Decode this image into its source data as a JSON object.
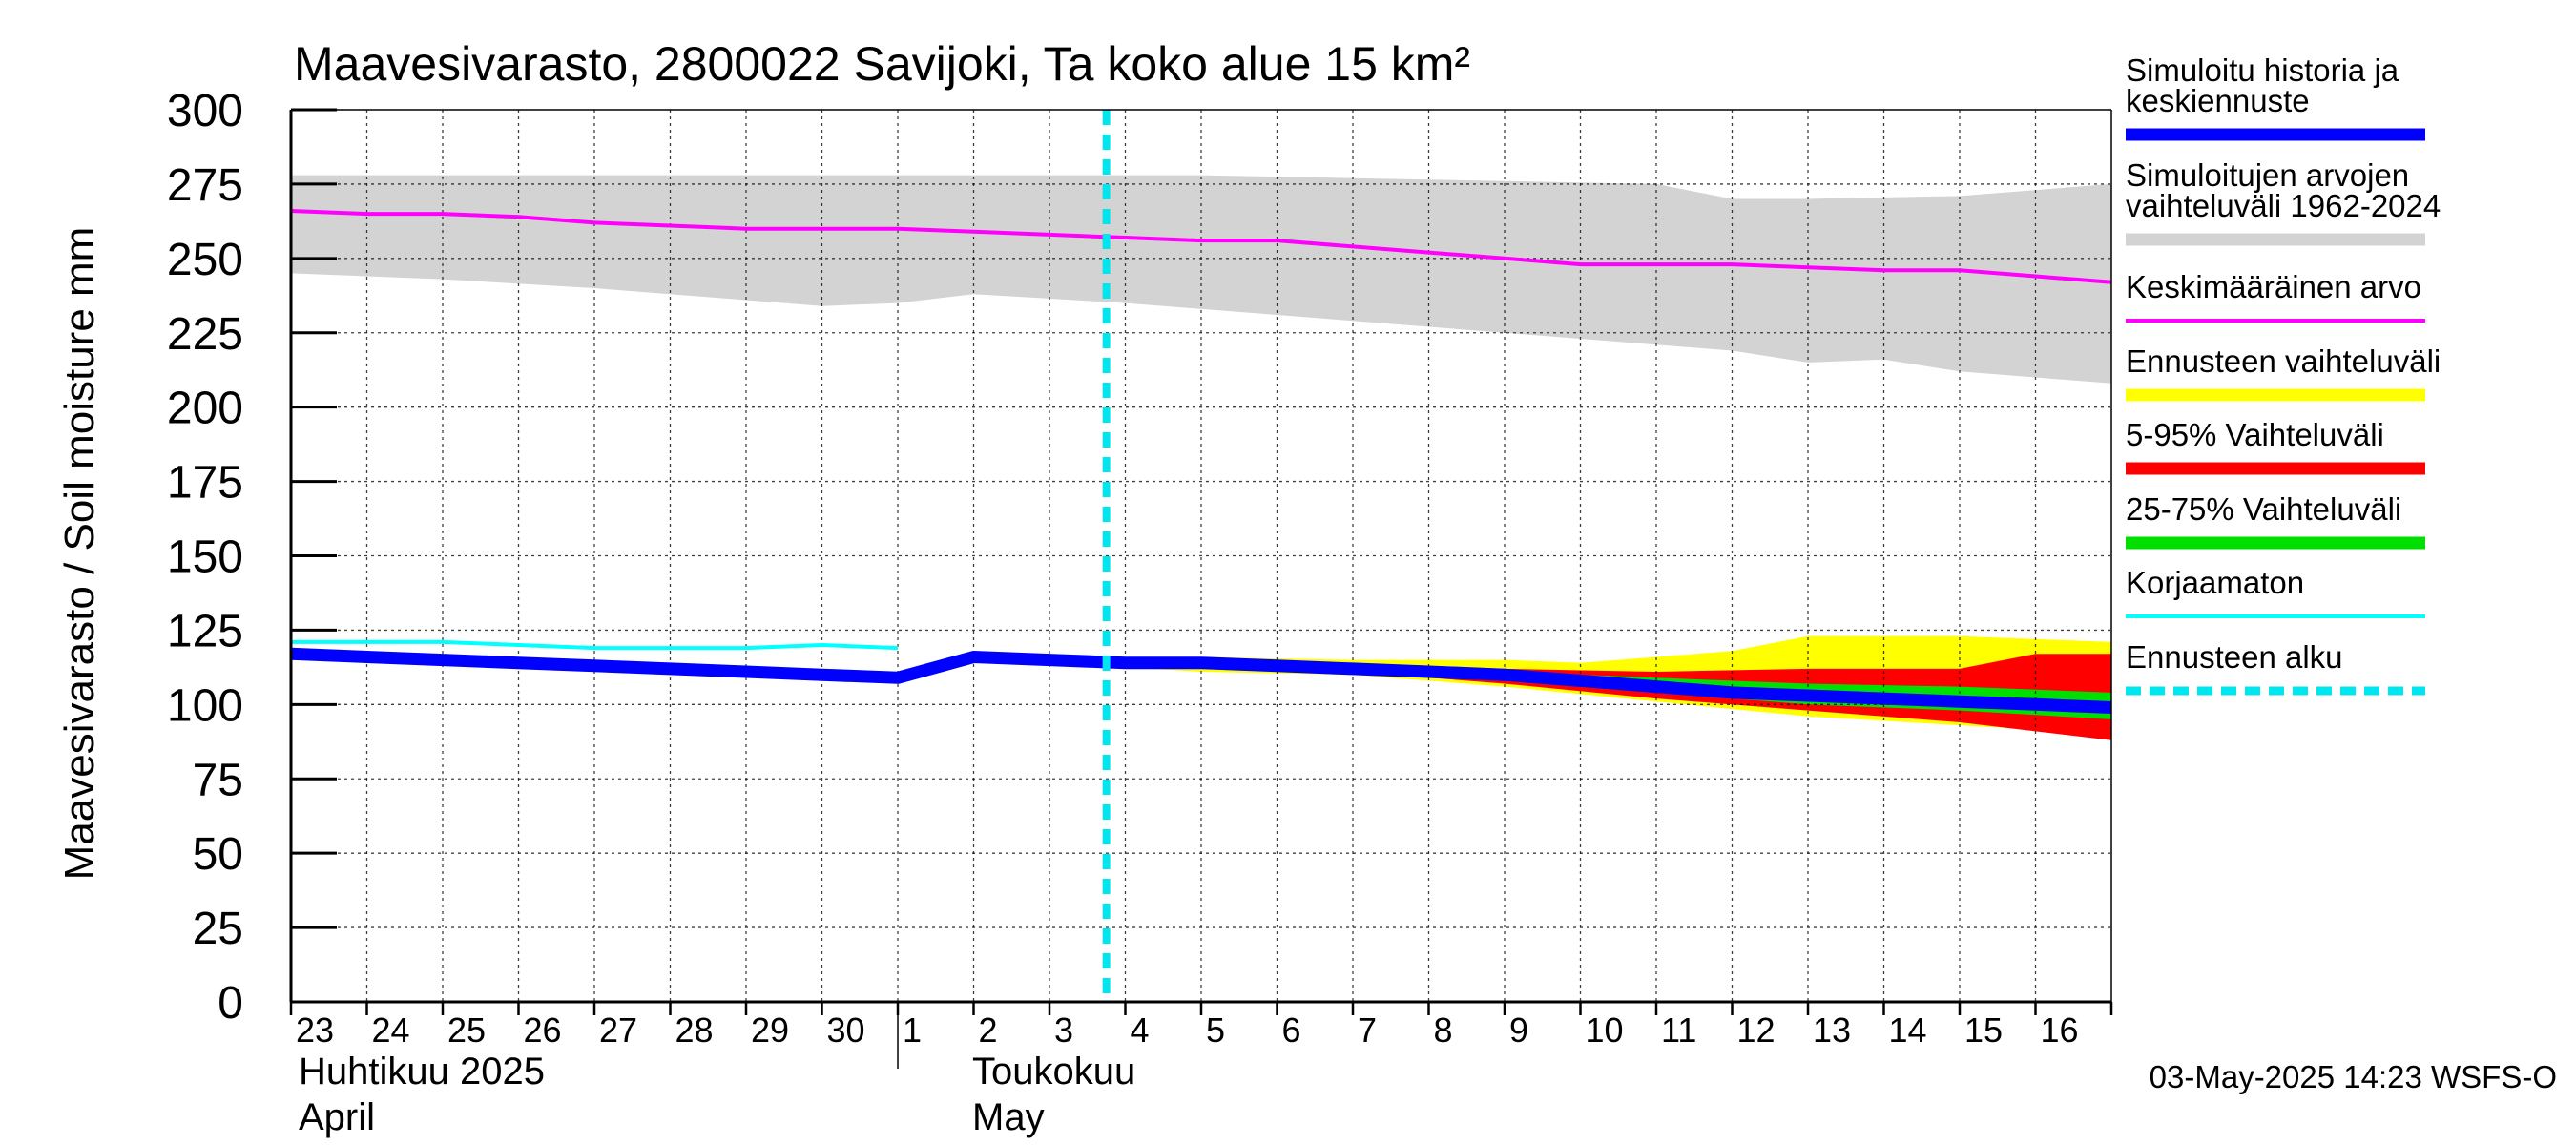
{
  "chart_data": {
    "type": "area",
    "title": "Maavesivarasto, 2800022 Savijoki, Ta koko alue 15 km²",
    "ylabel": "Maavesivarasto / Soil moisture   mm",
    "ylim": [
      0,
      300
    ],
    "yticks": [
      0,
      25,
      50,
      75,
      100,
      125,
      150,
      175,
      200,
      225,
      250,
      275,
      300
    ],
    "xlim": [
      "2025-04-23",
      "2025-05-17"
    ],
    "x_tick_labels": [
      "23",
      "24",
      "25",
      "26",
      "27",
      "28",
      "29",
      "30",
      "1",
      "2",
      "3",
      "4",
      "5",
      "6",
      "7",
      "8",
      "9",
      "10",
      "11",
      "12",
      "13",
      "14",
      "15",
      "16"
    ],
    "month_labels": [
      {
        "line1": "Huhtikuu  2025",
        "line2": "April"
      },
      {
        "line1": "Toukokuu",
        "line2": "May"
      }
    ],
    "grid": true,
    "legend_position": "right",
    "forecast_start": "2025-05-03",
    "footer": "03-May-2025 14:23 WSFS-O",
    "legend": [
      {
        "label": "Simuloitu historia ja\nkeskiennuste",
        "color": "#0000ff",
        "style": "thick"
      },
      {
        "label": "Simuloitujen arvojen\nvaihteluväli 1962-2024",
        "color": "#d3d3d3",
        "style": "thick"
      },
      {
        "label": "Keskimääräinen arvo",
        "color": "#ff00ff",
        "style": "thin"
      },
      {
        "label": "Ennusteen vaihteluväli",
        "color": "#ffff00",
        "style": "thick"
      },
      {
        "label": "5-95% Vaihteluväli",
        "color": "#ff0000",
        "style": "thick"
      },
      {
        "label": "25-75% Vaihteluväli",
        "color": "#00e000",
        "style": "thick"
      },
      {
        "label": "Korjaamaton",
        "color": "#00ffff",
        "style": "thin"
      },
      {
        "label": "Ennusteen alku",
        "color": "#00e5ee",
        "style": "dashed"
      }
    ],
    "series": [
      {
        "name": "Simulated range 1962-2024 (upper)",
        "x": [
          "2025-04-23",
          "2025-04-25",
          "2025-04-27",
          "2025-04-29",
          "2025-05-01",
          "2025-05-03",
          "2025-05-05",
          "2025-05-07",
          "2025-05-09",
          "2025-05-11",
          "2025-05-12",
          "2025-05-13",
          "2025-05-15",
          "2025-05-17"
        ],
        "values": [
          278,
          278,
          278,
          278,
          278,
          278,
          278,
          277,
          276,
          275,
          270,
          270,
          271,
          275
        ]
      },
      {
        "name": "Simulated range 1962-2024 (lower)",
        "x": [
          "2025-04-23",
          "2025-04-25",
          "2025-04-27",
          "2025-04-29",
          "2025-04-30",
          "2025-05-01",
          "2025-05-02",
          "2025-05-04",
          "2025-05-06",
          "2025-05-08",
          "2025-05-10",
          "2025-05-12",
          "2025-05-13",
          "2025-05-14",
          "2025-05-15",
          "2025-05-17"
        ],
        "values": [
          245,
          243,
          240,
          236,
          234,
          235,
          238,
          235,
          231,
          227,
          223,
          219,
          215,
          216,
          212,
          208
        ]
      },
      {
        "name": "Mean",
        "x": [
          "2025-04-23",
          "2025-04-24",
          "2025-04-25",
          "2025-04-26",
          "2025-04-27",
          "2025-04-28",
          "2025-04-29",
          "2025-04-30",
          "2025-05-01",
          "2025-05-02",
          "2025-05-03",
          "2025-05-04",
          "2025-05-05",
          "2025-05-06",
          "2025-05-07",
          "2025-05-08",
          "2025-05-09",
          "2025-05-10",
          "2025-05-11",
          "2025-05-12",
          "2025-05-13",
          "2025-05-14",
          "2025-05-15",
          "2025-05-16",
          "2025-05-17"
        ],
        "values": [
          266,
          265,
          265,
          264,
          262,
          261,
          260,
          260,
          260,
          259,
          258,
          257,
          256,
          256,
          254,
          252,
          250,
          248,
          248,
          248,
          247,
          246,
          246,
          244,
          242
        ]
      },
      {
        "name": "Uncorrected",
        "x": [
          "2025-04-23",
          "2025-04-24",
          "2025-04-25",
          "2025-04-26",
          "2025-04-27",
          "2025-04-28",
          "2025-04-29",
          "2025-04-30",
          "2025-05-01"
        ],
        "values": [
          121,
          121,
          121,
          120,
          119,
          119,
          119,
          120,
          119
        ]
      },
      {
        "name": "Simulated history and median forecast",
        "x": [
          "2025-04-23",
          "2025-04-24",
          "2025-04-25",
          "2025-04-26",
          "2025-04-27",
          "2025-04-28",
          "2025-04-29",
          "2025-04-30",
          "2025-05-01",
          "2025-05-02",
          "2025-05-03",
          "2025-05-04",
          "2025-05-05",
          "2025-05-06",
          "2025-05-07",
          "2025-05-08",
          "2025-05-09",
          "2025-05-10",
          "2025-05-11",
          "2025-05-12",
          "2025-05-13",
          "2025-05-14",
          "2025-05-15",
          "2025-05-16",
          "2025-05-17"
        ],
        "values": [
          117,
          116,
          115,
          114,
          113,
          112,
          111,
          110,
          109,
          116,
          115,
          114,
          114,
          113,
          112,
          111,
          110,
          108,
          106,
          104,
          103,
          102,
          101,
          100,
          99
        ]
      },
      {
        "name": "Forecast range (upper)",
        "x": [
          "2025-05-03",
          "2025-05-05",
          "2025-05-07",
          "2025-05-09",
          "2025-05-10",
          "2025-05-11",
          "2025-05-12",
          "2025-05-13",
          "2025-05-15",
          "2025-05-17"
        ],
        "values": [
          115,
          116,
          115,
          115,
          114,
          116,
          118,
          123,
          123,
          121
        ]
      },
      {
        "name": "Forecast range (lower)",
        "x": [
          "2025-05-03",
          "2025-05-05",
          "2025-05-07",
          "2025-05-09",
          "2025-05-11",
          "2025-05-13",
          "2025-05-15",
          "2025-05-17"
        ],
        "values": [
          114,
          111,
          110,
          106,
          101,
          96,
          93,
          90
        ]
      },
      {
        "name": "5-95% (upper)",
        "x": [
          "2025-05-03",
          "2025-05-05",
          "2025-05-07",
          "2025-05-09",
          "2025-05-11",
          "2025-05-13",
          "2025-05-15",
          "2025-05-16",
          "2025-05-17"
        ],
        "values": [
          115,
          115,
          114,
          112,
          111,
          112,
          112,
          117,
          117
        ]
      },
      {
        "name": "5-95% (lower)",
        "x": [
          "2025-05-03",
          "2025-05-05",
          "2025-05-07",
          "2025-05-09",
          "2025-05-11",
          "2025-05-13",
          "2025-05-15",
          "2025-05-17"
        ],
        "values": [
          114,
          112,
          111,
          107,
          102,
          98,
          94,
          88
        ]
      },
      {
        "name": "25-75% (upper)",
        "x": [
          "2025-05-03",
          "2025-05-05",
          "2025-05-07",
          "2025-05-09",
          "2025-05-11",
          "2025-05-13",
          "2025-05-15",
          "2025-05-17"
        ],
        "values": [
          115,
          114,
          113,
          111,
          109,
          107,
          106,
          104
        ]
      },
      {
        "name": "25-75% (lower)",
        "x": [
          "2025-05-03",
          "2025-05-05",
          "2025-05-07",
          "2025-05-09",
          "2025-05-11",
          "2025-05-13",
          "2025-05-15",
          "2025-05-17"
        ],
        "values": [
          114,
          113,
          112,
          109,
          104,
          100,
          98,
          95
        ]
      }
    ]
  }
}
